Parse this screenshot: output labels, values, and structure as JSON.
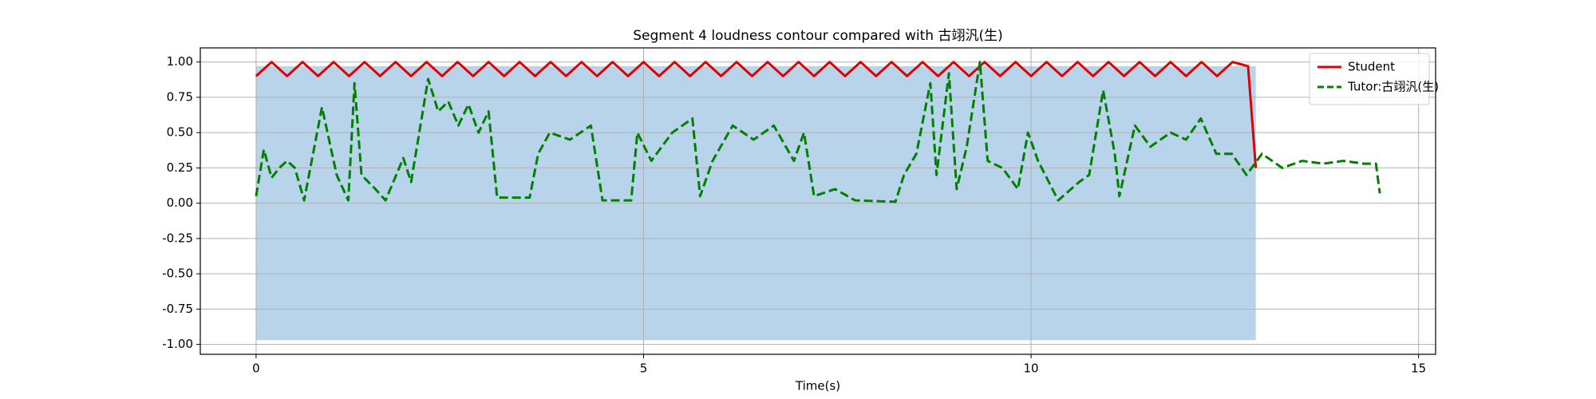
{
  "chart_data": {
    "type": "line",
    "title": "Segment 4 loudness contour compared with 古翊汎(生)",
    "xlabel": "Time(s)",
    "xlim": [
      -0.72,
      15.22
    ],
    "xticks": [
      0,
      5,
      10,
      15
    ],
    "ylim": [
      -1.07,
      1.1
    ],
    "yticks": [
      {
        "value": 1,
        "label": "1.00"
      },
      {
        "value": 0.75,
        "label": "0.75"
      },
      {
        "value": 0.5,
        "label": "0.50"
      },
      {
        "value": 0.25,
        "label": "0.25"
      },
      {
        "value": 0,
        "label": "0.00"
      },
      {
        "value": -0.25,
        "label": "-0.25"
      },
      {
        "value": -0.5,
        "label": "-0.50"
      },
      {
        "value": -0.75,
        "label": "-0.75"
      },
      {
        "value": -1,
        "label": "-1.00"
      }
    ],
    "grid": true,
    "legend": "upper right",
    "waveform": {
      "color": "#b8d4ea",
      "x": [
        0,
        1,
        2,
        3,
        4,
        5,
        6,
        7,
        8,
        9,
        10,
        11,
        12,
        12.9
      ],
      "upper": [
        0.97,
        0.97,
        0.97,
        0.97,
        0.97,
        0.97,
        0.97,
        0.97,
        0.97,
        0.97,
        0.97,
        0.97,
        0.97,
        0.97
      ],
      "lower": [
        -0.97,
        -0.97,
        -0.97,
        -0.97,
        -0.97,
        -0.97,
        -0.97,
        -0.97,
        -0.97,
        -0.97,
        -0.97,
        -0.97,
        -0.97,
        -0.97
      ]
    },
    "series": [
      {
        "name": "Student",
        "color": "#e00000",
        "dash": "solid",
        "x": [
          0,
          0.2,
          0.4,
          0.6,
          0.8,
          1,
          1.2,
          1.4,
          1.6,
          1.8,
          2,
          2.2,
          2.4,
          2.6,
          2.8,
          3,
          3.2,
          3.4,
          3.6,
          3.8,
          4,
          4.2,
          4.4,
          4.6,
          4.8,
          5,
          5.2,
          5.4,
          5.6,
          5.8,
          6,
          6.2,
          6.4,
          6.6,
          6.8,
          7,
          7.2,
          7.4,
          7.6,
          7.8,
          8,
          8.2,
          8.4,
          8.6,
          8.8,
          9,
          9.2,
          9.4,
          9.6,
          9.8,
          10,
          10.2,
          10.4,
          10.6,
          10.8,
          11,
          11.2,
          11.4,
          11.6,
          11.8,
          12,
          12.2,
          12.4,
          12.6,
          12.8,
          12.9
        ],
        "values": [
          0.9,
          1,
          0.9,
          1,
          0.9,
          1,
          0.9,
          1,
          0.9,
          1,
          0.9,
          1,
          0.9,
          1,
          0.9,
          1,
          0.9,
          1,
          0.9,
          1,
          0.9,
          1,
          0.9,
          1,
          0.9,
          1,
          0.9,
          1,
          0.9,
          1,
          0.9,
          1,
          0.9,
          1,
          0.9,
          1,
          0.9,
          1,
          0.9,
          1,
          0.9,
          1,
          0.9,
          1,
          0.9,
          1,
          0.9,
          1,
          0.9,
          1,
          0.9,
          1,
          0.9,
          1,
          0.9,
          1,
          0.9,
          1,
          0.9,
          1,
          0.9,
          1,
          0.9,
          1,
          0.97,
          0.25
        ]
      },
      {
        "name": "Tutor:古翊汎(生)",
        "color": "#008000",
        "dash": "dashed",
        "x": [
          0,
          0.1,
          0.2,
          0.3,
          0.4,
          0.5,
          0.62,
          0.85,
          1.04,
          1.19,
          1.27,
          1.36,
          1.54,
          1.67,
          1.9,
          2,
          2.22,
          2.35,
          2.48,
          2.61,
          2.74,
          2.87,
          3,
          3.11,
          3.53,
          3.64,
          3.79,
          4.05,
          4.32,
          4.47,
          4.84,
          4.92,
          5.1,
          5.37,
          5.63,
          5.73,
          5.89,
          6.15,
          6.42,
          6.68,
          6.94,
          7.07,
          7.2,
          7.47,
          7.73,
          8.25,
          8.36,
          8.52,
          8.7,
          8.78,
          8.94,
          9.04,
          9.17,
          9.34,
          9.44,
          9.63,
          9.83,
          9.96,
          10.09,
          10.35,
          10.62,
          10.75,
          10.93,
          11.08,
          11.14,
          11.34,
          11.54,
          11.8,
          12,
          12.19,
          12.39,
          12.59,
          12.78,
          12.98,
          13.24,
          13.5,
          13.77,
          14.03,
          14.29,
          14.45,
          14.5
        ],
        "values": [
          0.05,
          0.38,
          0.18,
          0.25,
          0.3,
          0.25,
          0.02,
          0.68,
          0.2,
          0.02,
          0.85,
          0.2,
          0.1,
          0.02,
          0.32,
          0.15,
          0.88,
          0.65,
          0.72,
          0.55,
          0.7,
          0.5,
          0.65,
          0.04,
          0.04,
          0.35,
          0.5,
          0.45,
          0.55,
          0.02,
          0.02,
          0.5,
          0.3,
          0.5,
          0.6,
          0.05,
          0.3,
          0.55,
          0.45,
          0.55,
          0.3,
          0.5,
          0.05,
          0.1,
          0.02,
          0.01,
          0.2,
          0.35,
          0.85,
          0.2,
          0.92,
          0.1,
          0.4,
          1,
          0.3,
          0.25,
          0.1,
          0.5,
          0.3,
          0.02,
          0.15,
          0.2,
          0.8,
          0.35,
          0.05,
          0.55,
          0.4,
          0.5,
          0.45,
          0.6,
          0.35,
          0.35,
          0.2,
          0.35,
          0.25,
          0.3,
          0.28,
          0.3,
          0.28,
          0.28,
          0.07
        ]
      }
    ]
  }
}
